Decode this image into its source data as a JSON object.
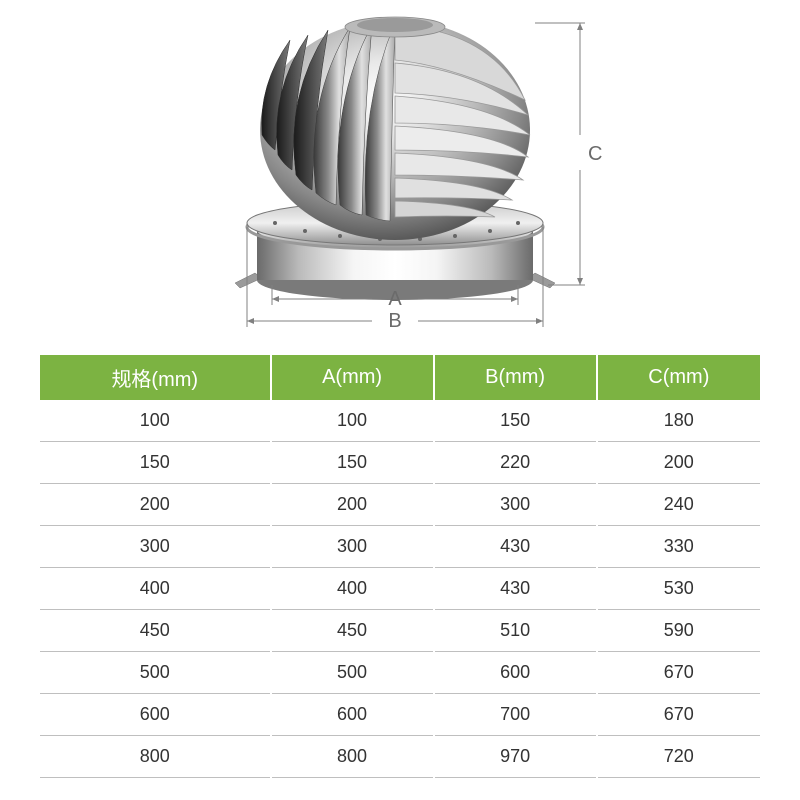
{
  "diagram": {
    "label_A": "A",
    "label_B": "B",
    "label_C": "C",
    "label_color": "#6b6b6b",
    "dim_line_color": "#808080",
    "dim_line_width": 1
  },
  "table": {
    "header_bg": "#7cb342",
    "header_text_color": "#ffffff",
    "header_fontsize": 20,
    "cell_fontsize": 18,
    "cell_text_color": "#333333",
    "border_color": "#bfbfbf",
    "col_separator_color": "#ffffff",
    "columns": [
      "规格(mm)",
      "A(mm)",
      "B(mm)",
      "C(mm)"
    ],
    "rows": [
      [
        "100",
        "100",
        "150",
        "180"
      ],
      [
        "150",
        "150",
        "220",
        "200"
      ],
      [
        "200",
        "200",
        "300",
        "240"
      ],
      [
        "300",
        "300",
        "430",
        "330"
      ],
      [
        "400",
        "400",
        "430",
        "530"
      ],
      [
        "450",
        "450",
        "510",
        "590"
      ],
      [
        "500",
        "500",
        "600",
        "670"
      ],
      [
        "600",
        "600",
        "700",
        "670"
      ],
      [
        "800",
        "800",
        "970",
        "720"
      ]
    ]
  }
}
